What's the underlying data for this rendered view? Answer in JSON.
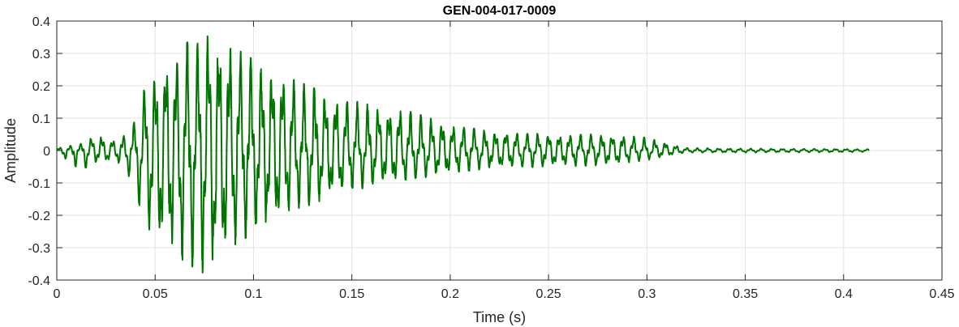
{
  "chart_data": {
    "type": "line",
    "title": "GEN-004-017-0009",
    "xlabel": "Time (s)",
    "ylabel": "Amplitude",
    "xlim": [
      0,
      0.45
    ],
    "ylim": [
      -0.4,
      0.4
    ],
    "x_ticks": [
      0,
      0.05,
      0.1,
      0.15,
      0.2,
      0.25,
      0.3,
      0.35,
      0.4,
      0.45
    ],
    "x_tick_labels": [
      "0",
      "0.05",
      "0.1",
      "0.15",
      "0.2",
      "0.25",
      "0.3",
      "0.35",
      "0.4",
      "0.45"
    ],
    "y_ticks": [
      -0.4,
      -0.3,
      -0.2,
      -0.1,
      0,
      0.1,
      0.2,
      0.3,
      0.4
    ],
    "y_tick_labels": [
      "-0.4",
      "-0.3",
      "-0.2",
      "-0.1",
      "0",
      "0.1",
      "0.2",
      "0.3",
      "0.4"
    ],
    "grid": true,
    "line_color": "#007400",
    "series": [
      {
        "duration": 0.413,
        "envelope": {
          "t": [
            0,
            0.012,
            0.02,
            0.03,
            0.038,
            0.045,
            0.055,
            0.065,
            0.075,
            0.08,
            0.09,
            0.1,
            0.12,
            0.14,
            0.16,
            0.18,
            0.2,
            0.22,
            0.25,
            0.28,
            0.3,
            0.32,
            0.35,
            0.4,
            0.413
          ],
          "pos": [
            0.008,
            0.02,
            0.05,
            0.03,
            0.06,
            0.2,
            0.28,
            0.33,
            0.36,
            0.37,
            0.32,
            0.28,
            0.22,
            0.17,
            0.14,
            0.12,
            0.08,
            0.06,
            0.05,
            0.05,
            0.04,
            0.008,
            0.006,
            0.005,
            0.004
          ],
          "neg": [
            0.006,
            0.06,
            0.04,
            0.03,
            0.09,
            0.23,
            0.3,
            0.35,
            0.38,
            0.37,
            0.3,
            0.25,
            0.19,
            0.14,
            0.11,
            0.09,
            0.07,
            0.055,
            0.05,
            0.045,
            0.03,
            0.006,
            0.006,
            0.005,
            0.004
          ]
        },
        "dominant_freq_hz": 185,
        "secondary_freq_hz": 590
      }
    ]
  }
}
